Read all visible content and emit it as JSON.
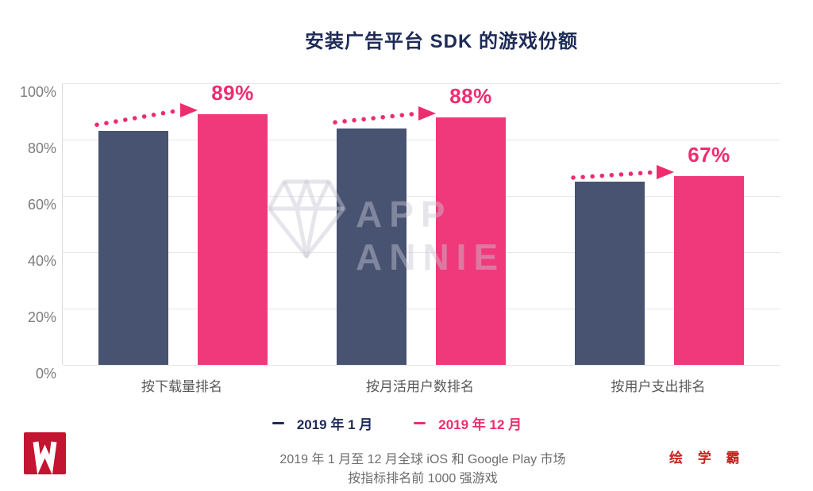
{
  "title": "安装广告平台 SDK 的游戏份额",
  "chart_data": {
    "type": "bar",
    "categories": [
      "按下载量排名",
      "按月活用户数排名",
      "按用户支出排名"
    ],
    "series": [
      {
        "name": "2019 年 1 月",
        "color": "#475371",
        "values": [
          83,
          84,
          65
        ]
      },
      {
        "name": "2019 年 12 月",
        "color": "#f0397a",
        "values": [
          89,
          88,
          67
        ]
      }
    ],
    "value_labels": [
      "89%",
      "88%",
      "67%"
    ],
    "value_label_color": "#ee2d6e",
    "arrow_color": "#ee2d6e",
    "yticks": [
      {
        "value": 0,
        "label": "0%"
      },
      {
        "value": 20,
        "label": "20%"
      },
      {
        "value": 40,
        "label": "40%"
      },
      {
        "value": 60,
        "label": "60%"
      },
      {
        "value": 80,
        "label": "80%"
      },
      {
        "value": 100,
        "label": "100%"
      }
    ],
    "ylim": [
      0,
      100
    ],
    "grid": true,
    "legend_position": "bottom",
    "legend_colors": [
      "#1e2b58",
      "#ee2d6e"
    ]
  },
  "watermark": {
    "text": "APP ANNIE",
    "icon": "diamond"
  },
  "footer": {
    "line1": "2019 年 1 月至 12 月全球 iOS 和 Google Play 市场",
    "line2": "按指标排名前 1000 强游戏"
  },
  "branding": {
    "stamp": "绘 学 霸",
    "logo_color": "#c31432"
  }
}
